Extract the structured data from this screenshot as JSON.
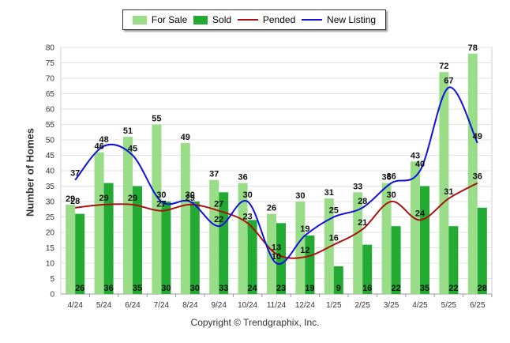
{
  "chart_data": {
    "type": "bar",
    "categories": [
      "4/24",
      "5/24",
      "6/24",
      "7/24",
      "8/24",
      "9/24",
      "10/24",
      "11/24",
      "12/24",
      "1/25",
      "2/25",
      "3/25",
      "4/25",
      "5/25",
      "6/25"
    ],
    "series": [
      {
        "name": "For Sale",
        "type": "bar",
        "color": "#99dd88",
        "values": [
          29,
          46,
          51,
          55,
          49,
          37,
          36,
          26,
          30,
          31,
          33,
          36,
          43,
          72,
          78
        ]
      },
      {
        "name": "Sold",
        "type": "bar",
        "color": "#22aa33",
        "values": [
          26,
          36,
          35,
          30,
          30,
          33,
          24,
          23,
          19,
          9,
          16,
          22,
          35,
          22,
          28
        ]
      },
      {
        "name": "Pended",
        "type": "line",
        "color": "#aa1111",
        "values": [
          28,
          29,
          29,
          27,
          29,
          27,
          23,
          13,
          12,
          16,
          21,
          30,
          24,
          31,
          36
        ]
      },
      {
        "name": "New Listing",
        "type": "line",
        "color": "#1111dd",
        "values": [
          37,
          48,
          45,
          30,
          30,
          22,
          30,
          10,
          19,
          25,
          28,
          36,
          40,
          67,
          49
        ]
      }
    ],
    "ylabel": "Number of Homes",
    "ylim": [
      0,
      80
    ],
    "yticks": [
      0,
      5,
      10,
      15,
      20,
      25,
      30,
      35,
      40,
      45,
      50,
      55,
      60,
      65,
      70,
      75,
      80
    ],
    "grid": true,
    "legend": "top-center"
  },
  "footer": {
    "copyright": "Copyright © Trendgraphix, Inc."
  }
}
